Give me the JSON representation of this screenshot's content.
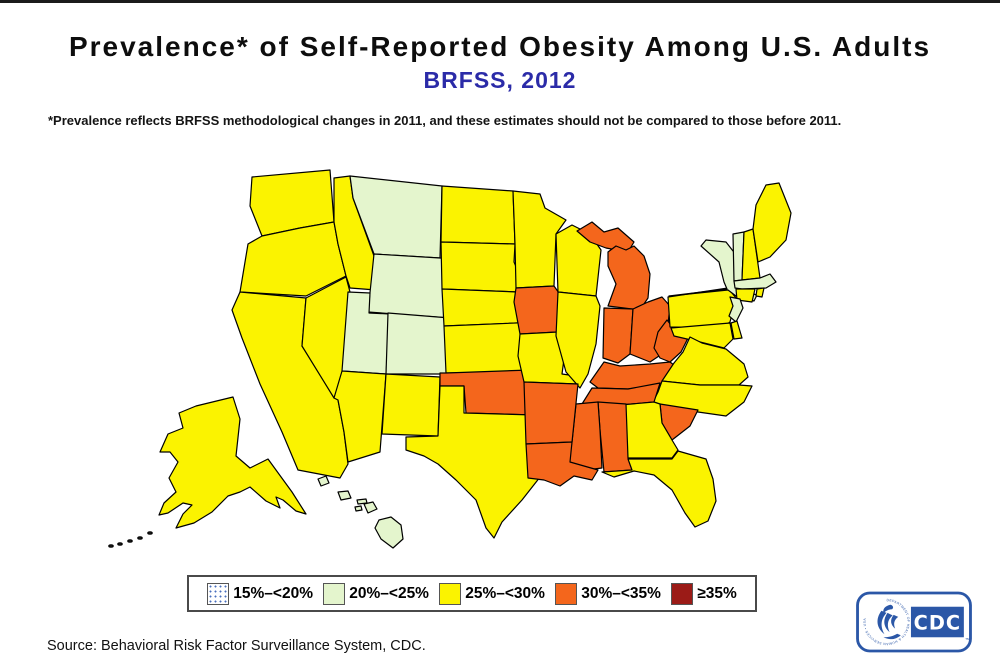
{
  "title": "Prevalence* of Self-Reported Obesity Among U.S. Adults",
  "subtitle": "BRFSS, 2012",
  "footnote": "*Prevalence reflects BRFSS methodological changes in 2011, and these estimates should not be compared to those before 2011.",
  "source": "Source: Behavioral Risk Factor Surveillance System, CDC.",
  "legend": {
    "bins": [
      {
        "key": "15-20",
        "label": "15%–<20%",
        "fill": "#ffffff",
        "pattern": "blue-dots",
        "dot_color": "#4a6fbd"
      },
      {
        "key": "20-25",
        "label": "20%–<25%",
        "fill": "#E4F5CD"
      },
      {
        "key": "25-30",
        "label": "25%–<30%",
        "fill": "#FBF300"
      },
      {
        "key": "30-35",
        "label": "30%–<35%",
        "fill": "#F4661C"
      },
      {
        "key": "35plus",
        "label": "≥35%",
        "fill": "#9B1B17"
      }
    ]
  },
  "logo": {
    "cdc_label": "CDC",
    "ring_text": "DEPARTMENT OF HEALTH & HUMAN SERVICES • USA",
    "trademark": "™",
    "brand_blue": "#2B57A7"
  },
  "chart_data": {
    "type": "choropleth",
    "title": "Prevalence of Self-Reported Obesity Among U.S. Adults, BRFSS 2012",
    "legend_bins": [
      "15%–<20%",
      "20%–<25%",
      "25%–<30%",
      "30%–<35%",
      "≥35%"
    ],
    "empty_bins": [
      "15%–<20%",
      "≥35%"
    ],
    "states": {
      "WA": "25-30",
      "OR": "25-30",
      "CA": "25-30",
      "NV": "25-30",
      "ID": "25-30",
      "AZ": "25-30",
      "NM": "25-30",
      "TX": "25-30",
      "KS": "25-30",
      "NE": "25-30",
      "SD": "25-30",
      "ND": "25-30",
      "MN": "25-30",
      "WI": "25-30",
      "IL": "25-30",
      "MO": "25-30",
      "GA": "25-30",
      "FL": "25-30",
      "NC": "25-30",
      "VA": "25-30",
      "MD": "25-30",
      "DE": "25-30",
      "PA": "25-30",
      "CT": "25-30",
      "RI": "25-30",
      "NH": "25-30",
      "ME": "25-30",
      "AK": "25-30",
      "MT": "20-25",
      "WY": "20-25",
      "UT": "20-25",
      "CO": "20-25",
      "NY": "20-25",
      "VT": "20-25",
      "MA": "20-25",
      "NJ": "20-25",
      "HI": "20-25",
      "IA": "30-35",
      "MI": "30-35",
      "IN": "30-35",
      "OH": "30-35",
      "KY": "30-35",
      "WV": "30-35",
      "TN": "30-35",
      "SC": "30-35",
      "AL": "30-35",
      "MS": "30-35",
      "AR": "30-35",
      "LA": "30-35",
      "OK": "30-35"
    }
  }
}
